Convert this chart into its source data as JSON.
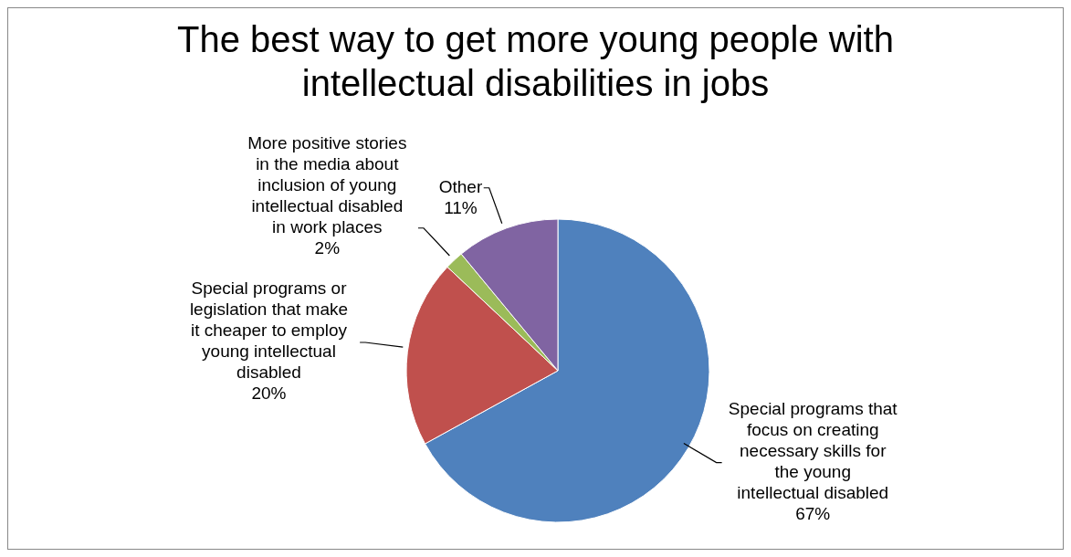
{
  "chart_data": {
    "type": "pie",
    "title": "The best way to get more young people with intellectual disabilities in jobs",
    "categories": [
      "Special programs that focus on creating necessary skills for the young intellectual disabled",
      "Special programs or legislation that make it cheaper to employ young intellectual disabled",
      "More positive stories in the media about inclusion of young intellectual disabled in work places",
      "Other"
    ],
    "values": [
      67,
      20,
      2,
      11
    ],
    "value_labels": [
      "67%",
      "20%",
      "2%",
      "11%"
    ],
    "colors": [
      "#4f81bd",
      "#c0504d",
      "#9bbb59",
      "#8064a2"
    ],
    "legend": false
  }
}
